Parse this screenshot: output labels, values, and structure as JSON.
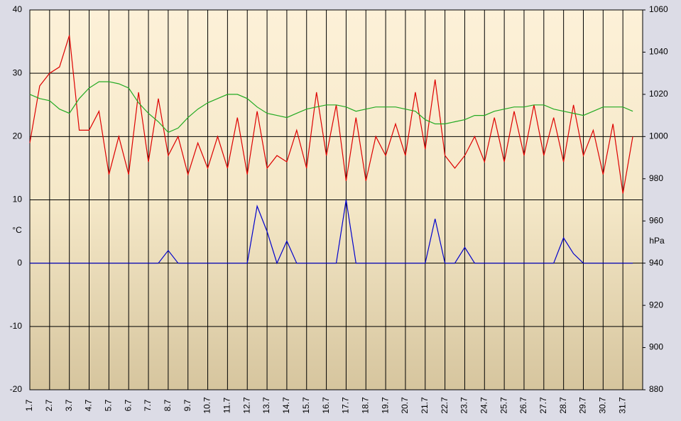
{
  "chart_data": {
    "type": "line",
    "categories": [
      "1.7",
      null,
      "2.7",
      null,
      "3.7",
      null,
      "4.7",
      null,
      "5.7",
      null,
      "6.7",
      null,
      "7.7",
      null,
      "8.7",
      null,
      "9.7",
      null,
      "10.7",
      null,
      "11.7",
      null,
      "12.7",
      null,
      "13.7",
      null,
      "14.7",
      null,
      "15.7",
      null,
      "16.7",
      null,
      "17.7",
      null,
      "18.7",
      null,
      "19.7",
      null,
      "20.7",
      null,
      "21.7",
      null,
      "22.7",
      null,
      "23.7",
      null,
      "24.7",
      null,
      "25.7",
      null,
      "26.7",
      null,
      "27.7",
      null,
      "28.7",
      null,
      "29.7",
      null,
      "30.7",
      null,
      "31.7",
      null
    ],
    "series": [
      {
        "color": "#dd0000",
        "values": [
          19,
          28,
          30,
          31,
          36,
          21,
          21,
          24,
          14,
          20,
          14,
          27,
          16,
          26,
          17,
          20,
          14,
          19,
          15,
          20,
          15,
          23,
          14,
          24,
          15,
          17,
          16,
          21,
          15,
          27,
          17,
          25,
          13,
          23,
          13,
          20,
          17,
          22,
          17,
          27,
          18,
          29,
          17,
          15,
          17,
          20,
          16,
          23,
          16,
          24,
          17,
          25,
          17,
          23,
          16,
          25,
          17,
          21,
          14,
          22,
          11,
          20
        ]
      },
      {
        "color": "#22aa22",
        "axis": "y2",
        "values": [
          1020,
          1018,
          1017,
          1013,
          1011,
          1018,
          1023,
          1026,
          1026,
          1025,
          1023,
          1016,
          1011,
          1007,
          1002,
          1004,
          1009,
          1013,
          1016,
          1018,
          1020,
          1020,
          1018,
          1014,
          1011,
          1010,
          1009,
          1011,
          1013,
          1014,
          1015,
          1015,
          1014,
          1012,
          1013,
          1014,
          1014,
          1014,
          1013,
          1012,
          1008,
          1006,
          1006,
          1007,
          1008,
          1010,
          1010,
          1012,
          1013,
          1014,
          1014,
          1015,
          1015,
          1013,
          1012,
          1011,
          1010,
          1012,
          1014,
          1014,
          1014,
          1012
        ]
      },
      {
        "color": "#0000cc",
        "values": [
          0,
          0,
          0,
          0,
          0,
          0,
          0,
          0,
          0,
          0,
          0,
          0,
          0,
          0,
          2,
          0,
          0,
          0,
          0,
          0,
          0,
          0,
          0,
          9,
          5,
          0,
          3.5,
          0,
          0,
          0,
          0,
          0,
          10,
          0,
          0,
          0,
          0,
          0,
          0,
          0,
          0,
          7,
          0,
          0,
          2.5,
          0,
          0,
          0,
          0,
          0,
          0,
          0,
          0,
          0,
          4,
          1.5,
          0,
          0,
          0,
          0,
          0,
          0
        ]
      }
    ],
    "y_label": "°C",
    "y2_label": "hPa",
    "ylim": [
      -20,
      40
    ],
    "yticks": [
      -20,
      -10,
      0,
      10,
      20,
      30,
      40
    ],
    "y2lim": [
      880,
      1060
    ],
    "y2ticks": [
      880,
      900,
      920,
      940,
      960,
      980,
      1000,
      1020,
      1040,
      1060
    ],
    "grid": true
  }
}
